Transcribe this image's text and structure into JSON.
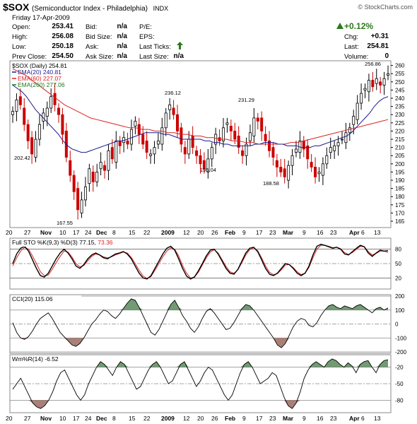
{
  "header": {
    "symbol": "$SOX",
    "name": "(Semiconductor Index - Philadelphia)",
    "exchange": "INDX",
    "copyright": "© StockCharts.com",
    "date": "Friday  17-Apr-2009"
  },
  "quote": {
    "open_label": "Open:",
    "open": "253.41",
    "high_label": "High:",
    "high": "256.08",
    "low_label": "Low:",
    "low": "250.18",
    "prev_label": "Prev Close:",
    "prev": "254.50",
    "bid_label": "Bid:",
    "bid": "n/a",
    "bidsize_label": "Bid Size:",
    "bidsize": "n/a",
    "ask_label": "Ask:",
    "ask": "n/a",
    "asksize_label": "Ask Size:",
    "asksize": "n/a",
    "pe_label": "P/E:",
    "eps_label": "EPS:",
    "lasttick_label": "Last Ticks:",
    "lastsize_label": "Last Size:",
    "lastsize": "n/a",
    "change_pct": "+0.12%",
    "chg_label": "Chg:",
    "chg": "+0.31",
    "last_label": "Last:",
    "last": "254.81",
    "volume_label": "Volume:",
    "volume": "0"
  },
  "colors": {
    "up": "#000000",
    "down": "#cc0000",
    "ema20": "#1a1a8c",
    "ema60": "#dd2222",
    "ema260": "#1a7a1a",
    "positive_fill": "#5a8a5a",
    "negative_fill": "#9a6a60"
  },
  "chart_data": [
    {
      "type": "candlestick",
      "legend": [
        "$SOX (Daily) 254.81",
        "EMA(20) 240.81",
        "EMA(60) 227.07",
        "EMA(260) 277.06"
      ],
      "ylim": [
        162,
        262
      ],
      "yticks": [
        165,
        170,
        175,
        180,
        185,
        190,
        195,
        200,
        205,
        210,
        215,
        220,
        225,
        230,
        235,
        240,
        245,
        250,
        255,
        260
      ],
      "x_labels": [
        "20",
        "27",
        "Nov",
        "10",
        "17",
        "24",
        "Dec",
        "8",
        "15",
        "22",
        "2009",
        "12",
        "20",
        "26",
        "Feb",
        "9",
        "17",
        "23",
        "Mar",
        "9",
        "16",
        "23",
        "Apr",
        "6",
        "13"
      ],
      "annotations": [
        "202.42",
        "167.55",
        "236.12",
        "195.04",
        "231.29",
        "188.58",
        "256.86"
      ],
      "close": [
        232,
        239,
        236,
        224,
        214,
        206,
        215,
        224,
        231,
        234,
        241,
        236,
        230,
        218,
        204,
        193,
        183,
        172,
        178,
        186,
        197,
        189,
        195,
        201,
        196,
        208,
        203,
        214,
        211,
        216,
        212,
        221,
        226,
        218,
        212,
        207,
        206,
        210,
        214,
        222,
        231,
        236,
        230,
        220,
        212,
        206,
        215,
        210,
        205,
        200,
        197,
        203,
        210,
        218,
        214,
        222,
        225,
        220,
        215,
        210,
        205,
        212,
        219,
        228,
        226,
        220,
        214,
        208,
        204,
        198,
        195,
        192,
        199,
        205,
        209,
        214,
        209,
        203,
        198,
        192,
        195,
        200,
        205,
        210,
        211,
        213,
        215,
        219,
        222,
        229,
        237,
        243,
        246,
        251,
        247,
        252,
        248,
        252,
        255
      ],
      "ema20": [
        248,
        246,
        244,
        241,
        237,
        233,
        230,
        227,
        224,
        221,
        218,
        214,
        211,
        209,
        208,
        207,
        207,
        208,
        209,
        210,
        211,
        212,
        213,
        214,
        214,
        215,
        216,
        217,
        218,
        219,
        219,
        219,
        219,
        218,
        218,
        217,
        216,
        215,
        215,
        215,
        215,
        215,
        214,
        214,
        213,
        213,
        212,
        212,
        211,
        211,
        211,
        211,
        211,
        212,
        212,
        213,
        213,
        213,
        212,
        212,
        211,
        211,
        211,
        210,
        210,
        210,
        211,
        211,
        212,
        213,
        214,
        215,
        216,
        217,
        219,
        222,
        225,
        228,
        231,
        235,
        238,
        240,
        241
      ],
      "ema60": [
        258,
        256,
        254,
        251,
        248,
        245,
        242,
        239,
        236,
        234,
        232,
        230,
        228,
        227,
        226,
        225,
        224,
        223,
        222,
        222,
        221,
        221,
        220,
        220,
        219,
        219,
        218,
        218,
        217,
        217,
        216,
        216,
        215,
        215,
        214,
        214,
        213,
        213,
        212,
        212,
        212,
        212,
        212,
        213,
        213,
        214,
        215,
        216,
        217,
        218,
        219,
        220,
        221,
        222,
        223,
        224,
        225,
        226,
        227
      ],
      "ema260": [
        277.06
      ]
    },
    {
      "type": "line",
      "title": "Full STO %K(9,3) %D(3) 77.15, 73.36",
      "ylim": [
        0,
        100
      ],
      "yticks": [
        20,
        50,
        80
      ],
      "k": [
        50,
        70,
        82,
        86,
        76,
        58,
        40,
        25,
        22,
        30,
        45,
        60,
        72,
        80,
        72,
        60,
        45,
        40,
        48,
        60,
        68,
        72,
        68,
        62,
        60,
        65,
        70,
        72,
        75,
        70,
        60,
        45,
        30,
        20,
        18,
        25,
        40,
        55,
        70,
        82,
        86,
        78,
        60,
        40,
        24,
        18,
        22,
        35,
        50,
        66,
        78,
        80,
        70,
        55,
        40,
        30,
        28,
        38,
        55,
        72,
        82,
        84,
        75,
        58,
        40,
        28,
        25,
        30,
        40,
        50,
        48,
        40,
        30,
        25,
        30,
        45,
        68,
        86,
        90,
        88,
        85,
        82,
        84,
        80,
        70,
        68,
        75,
        82,
        88,
        85,
        72,
        65,
        72,
        78,
        76,
        77
      ],
      "d": [
        45,
        62,
        76,
        84,
        80,
        66,
        50,
        33,
        25,
        26,
        38,
        52,
        65,
        76,
        74,
        64,
        50,
        43,
        46,
        56,
        65,
        70,
        68,
        64,
        62,
        64,
        68,
        71,
        74,
        72,
        63,
        50,
        36,
        24,
        19,
        23,
        36,
        50,
        64,
        76,
        83,
        80,
        66,
        46,
        30,
        20,
        22,
        32,
        47,
        62,
        74,
        79,
        72,
        58,
        44,
        33,
        30,
        37,
        52,
        68,
        79,
        83,
        77,
        62,
        45,
        32,
        27,
        29,
        37,
        47,
        48,
        42,
        33,
        27,
        30,
        42,
        62,
        80,
        88,
        88,
        86,
        83,
        84,
        81,
        73,
        69,
        73,
        80,
        86,
        85,
        75,
        68,
        71,
        76,
        76,
        73.36
      ]
    },
    {
      "type": "area",
      "title": "CCI(20) 115.06",
      "ylim": [
        -200,
        200
      ],
      "yticks": [
        -200,
        -100,
        0,
        100,
        200
      ],
      "values": [
        10,
        -60,
        -100,
        -110,
        -90,
        -50,
        0,
        40,
        60,
        80,
        40,
        -10,
        -60,
        -90,
        -120,
        -150,
        -160,
        -140,
        -100,
        -50,
        0,
        30,
        70,
        100,
        90,
        60,
        40,
        70,
        110,
        150,
        180,
        170,
        120,
        60,
        0,
        -60,
        -80,
        -40,
        20,
        80,
        140,
        170,
        120,
        60,
        20,
        -30,
        -60,
        -20,
        40,
        90,
        110,
        80,
        40,
        0,
        -40,
        -30,
        10,
        60,
        110,
        140,
        130,
        100,
        60,
        20,
        -20,
        -60,
        -100,
        -150,
        -170,
        -140,
        -80,
        -20,
        20,
        40,
        30,
        -10,
        -20,
        10,
        60,
        100,
        130,
        140,
        120,
        110,
        130,
        120,
        110,
        130,
        140,
        120,
        100,
        80,
        110,
        120,
        100,
        115
      ]
    },
    {
      "type": "area",
      "title": "Wm%R(14) -6.52",
      "ylim": [
        -100,
        0
      ],
      "yticks": [
        -80,
        -50,
        -20
      ],
      "values": [
        -60,
        -50,
        -40,
        -55,
        -70,
        -85,
        -92,
        -95,
        -90,
        -80,
        -65,
        -45,
        -30,
        -25,
        -40,
        -55,
        -70,
        -80,
        -70,
        -50,
        -35,
        -20,
        -10,
        -15,
        -25,
        -35,
        -20,
        -10,
        -15,
        -30,
        -45,
        -60,
        -55,
        -40,
        -25,
        -15,
        -10,
        -20,
        -35,
        -50,
        -45,
        -30,
        -15,
        -10,
        -25,
        -40,
        -55,
        -45,
        -30,
        -20,
        -25,
        -40,
        -55,
        -70,
        -80,
        -70,
        -50,
        -30,
        -15,
        -10,
        -20,
        -35,
        -50,
        -45,
        -40,
        -30,
        -35,
        -55,
        -75,
        -90,
        -95,
        -85,
        -65,
        -40,
        -25,
        -15,
        -10,
        -15,
        -20,
        -10,
        -5,
        -8,
        -15,
        -20,
        -12,
        -18,
        -30,
        -15,
        -10,
        -8,
        -20,
        -30,
        -15,
        -8,
        -6.52
      ]
    }
  ]
}
